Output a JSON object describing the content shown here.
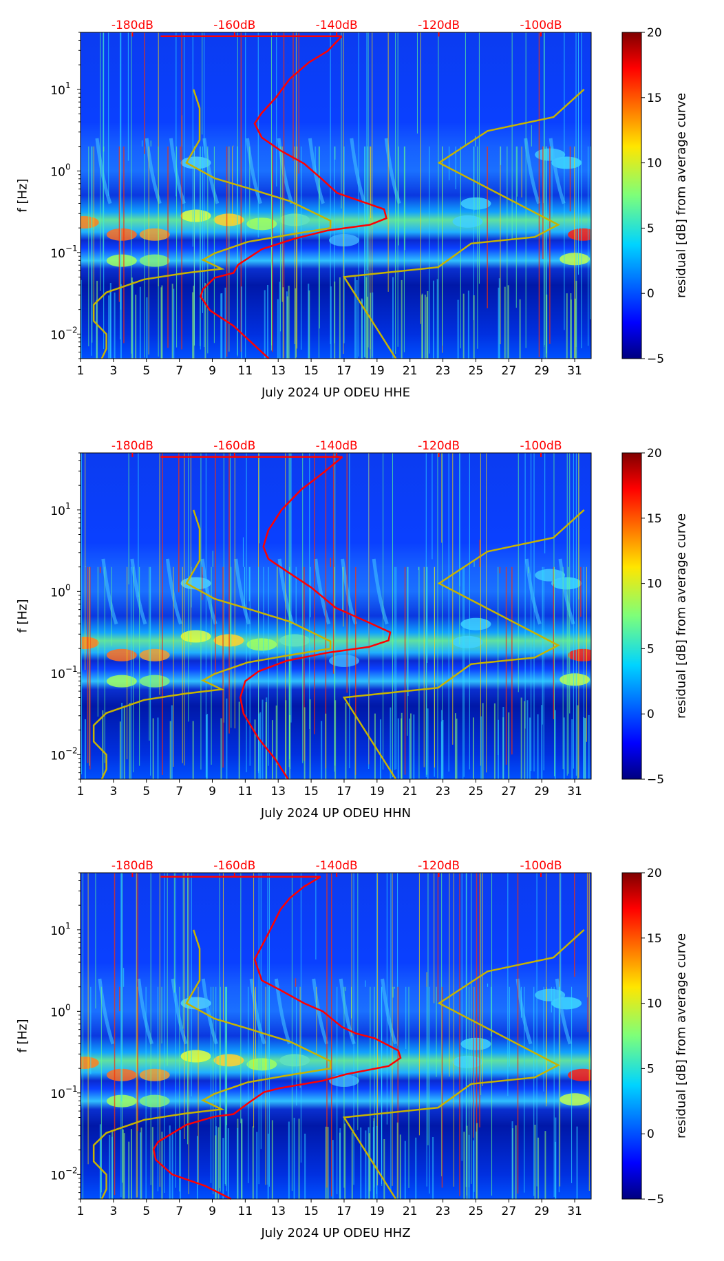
{
  "chart_data": [
    {
      "type": "heatmap",
      "title": "",
      "xlabel": "July 2024 UP ODEU  HHE",
      "ylabel": "f [Hz]",
      "x_ticks": [
        "1",
        "3",
        "5",
        "7",
        "9",
        "11",
        "13",
        "15",
        "17",
        "19",
        "21",
        "23",
        "25",
        "27",
        "29",
        "31"
      ],
      "xlim": [
        1,
        32
      ],
      "ylim": [
        0.005,
        50
      ],
      "y_scale": "log",
      "y_ticks": [
        {
          "exp": 1,
          "label": "10",
          "sup": "1"
        },
        {
          "exp": 0,
          "label": "10",
          "sup": "0"
        },
        {
          "exp": -1,
          "label": "10",
          "sup": "−1"
        },
        {
          "exp": -2,
          "label": "10",
          "sup": "−2"
        }
      ],
      "top_axis": {
        "labels": [
          "-180dB",
          "-160dB",
          "-140dB",
          "-120dB",
          "-100dB"
        ],
        "values_db": [
          -180,
          -160,
          -140,
          -120,
          -100
        ],
        "color": "#ff0000"
      },
      "colorbar": {
        "label": "residual [dB] from average curve",
        "range": [
          -5,
          20
        ],
        "ticks": [
          "20",
          "15",
          "10",
          "5",
          "0",
          "−5"
        ],
        "tick_values": [
          20,
          15,
          10,
          5,
          0,
          -5
        ],
        "colormap": "jet"
      },
      "point_format": [
        "day",
        "log10_f_Hz"
      ],
      "red_curve": {
        "color": "#ff0000",
        "points": [
          [
            16.86,
            1.65
          ],
          [
            16.0,
            1.47
          ],
          [
            14.86,
            1.33
          ],
          [
            13.71,
            1.13
          ],
          [
            12.86,
            0.9
          ],
          [
            12.0,
            0.71
          ],
          [
            11.57,
            0.58
          ],
          [
            12.0,
            0.41
          ],
          [
            13.14,
            0.25
          ],
          [
            14.57,
            0.09
          ],
          [
            15.71,
            -0.11
          ],
          [
            16.57,
            -0.27
          ],
          [
            18.29,
            -0.39
          ],
          [
            19.43,
            -0.47
          ],
          [
            19.57,
            -0.58
          ],
          [
            18.57,
            -0.66
          ],
          [
            16.0,
            -0.73
          ],
          [
            14.0,
            -0.83
          ],
          [
            12.0,
            -0.96
          ],
          [
            10.57,
            -1.15
          ],
          [
            10.29,
            -1.25
          ],
          [
            9.14,
            -1.31
          ],
          [
            8.43,
            -1.45
          ],
          [
            8.29,
            -1.54
          ],
          [
            8.86,
            -1.71
          ],
          [
            10.29,
            -1.9
          ],
          [
            12.43,
            -2.3
          ]
        ],
        "top_line_start_day": 5.86
      },
      "yellow_curves": [
        {
          "color": "#c8b400",
          "points": [
            [
              7.86,
              1.0
            ],
            [
              8.23,
              0.77
            ],
            [
              8.23,
              0.38
            ],
            [
              7.43,
              0.1
            ],
            [
              9.14,
              -0.09
            ],
            [
              11.14,
              -0.21
            ],
            [
              13.71,
              -0.37
            ],
            [
              16.17,
              -0.61
            ],
            [
              16.17,
              -0.7
            ],
            [
              13.71,
              -0.78
            ],
            [
              11.14,
              -0.87
            ],
            [
              9.14,
              -1.01
            ],
            [
              8.43,
              -1.09
            ],
            [
              9.57,
              -1.2
            ],
            [
              7.43,
              -1.25
            ],
            [
              4.86,
              -1.33
            ],
            [
              2.57,
              -1.49
            ],
            [
              1.8,
              -1.64
            ],
            [
              1.8,
              -1.84
            ],
            [
              2.57,
              -2.0
            ],
            [
              2.57,
              -2.18
            ],
            [
              2.29,
              -2.3
            ]
          ]
        },
        {
          "color": "#c8b400",
          "points": [
            [
              31.57,
              1.0
            ],
            [
              29.71,
              0.66
            ],
            [
              25.71,
              0.49
            ],
            [
              22.77,
              0.1
            ],
            [
              30.0,
              -0.66
            ],
            [
              28.57,
              -0.81
            ],
            [
              24.71,
              -0.89
            ],
            [
              22.71,
              -1.18
            ],
            [
              17.0,
              -1.3
            ],
            [
              20.14,
              -2.3
            ]
          ]
        }
      ]
    },
    {
      "type": "heatmap",
      "title": "",
      "xlabel": "July 2024 UP ODEU  HHN",
      "ylabel": "f [Hz]",
      "x_ticks": [
        "1",
        "3",
        "5",
        "7",
        "9",
        "11",
        "13",
        "15",
        "17",
        "19",
        "21",
        "23",
        "25",
        "27",
        "29",
        "31"
      ],
      "xlim": [
        1,
        32
      ],
      "ylim": [
        0.005,
        50
      ],
      "y_scale": "log",
      "y_ticks": [
        {
          "exp": 1,
          "label": "10",
          "sup": "1"
        },
        {
          "exp": 0,
          "label": "10",
          "sup": "0"
        },
        {
          "exp": -1,
          "label": "10",
          "sup": "−1"
        },
        {
          "exp": -2,
          "label": "10",
          "sup": "−2"
        }
      ],
      "top_axis": {
        "labels": [
          "-180dB",
          "-160dB",
          "-140dB",
          "-120dB",
          "-100dB"
        ],
        "values_db": [
          -180,
          -160,
          -140,
          -120,
          -100
        ],
        "color": "#ff0000"
      },
      "colorbar": {
        "label": "residual [dB] from average curve",
        "range": [
          -5,
          20
        ],
        "ticks": [
          "20",
          "15",
          "10",
          "5",
          "0",
          "−5"
        ],
        "tick_values": [
          20,
          15,
          10,
          5,
          0,
          -5
        ],
        "colormap": "jet"
      },
      "point_format": [
        "day",
        "log10_f_Hz"
      ],
      "red_curve": {
        "color": "#ff0000",
        "points": [
          [
            16.9,
            1.65
          ],
          [
            15.7,
            1.45
          ],
          [
            14.4,
            1.25
          ],
          [
            13.2,
            1.0
          ],
          [
            12.4,
            0.75
          ],
          [
            12.1,
            0.55
          ],
          [
            12.4,
            0.4
          ],
          [
            13.5,
            0.25
          ],
          [
            15.0,
            0.05
          ],
          [
            16.5,
            -0.2
          ],
          [
            18.5,
            -0.38
          ],
          [
            19.8,
            -0.5
          ],
          [
            19.7,
            -0.6
          ],
          [
            18.5,
            -0.68
          ],
          [
            16.0,
            -0.75
          ],
          [
            13.5,
            -0.85
          ],
          [
            11.8,
            -0.98
          ],
          [
            11.0,
            -1.1
          ],
          [
            10.7,
            -1.3
          ],
          [
            10.9,
            -1.5
          ],
          [
            11.8,
            -1.8
          ],
          [
            12.8,
            -2.05
          ],
          [
            13.6,
            -2.3
          ]
        ],
        "top_line_start_day": 5.86
      },
      "yellow_curves": [
        {
          "color": "#c8b400",
          "points": [
            [
              7.86,
              1.0
            ],
            [
              8.23,
              0.77
            ],
            [
              8.23,
              0.38
            ],
            [
              7.43,
              0.1
            ],
            [
              9.14,
              -0.09
            ],
            [
              11.14,
              -0.21
            ],
            [
              13.71,
              -0.37
            ],
            [
              16.17,
              -0.61
            ],
            [
              16.17,
              -0.7
            ],
            [
              13.71,
              -0.78
            ],
            [
              11.14,
              -0.87
            ],
            [
              9.14,
              -1.01
            ],
            [
              8.43,
              -1.09
            ],
            [
              9.57,
              -1.2
            ],
            [
              7.43,
              -1.25
            ],
            [
              4.86,
              -1.33
            ],
            [
              2.57,
              -1.49
            ],
            [
              1.8,
              -1.64
            ],
            [
              1.8,
              -1.84
            ],
            [
              2.57,
              -2.0
            ],
            [
              2.57,
              -2.18
            ],
            [
              2.29,
              -2.3
            ]
          ]
        },
        {
          "color": "#c8b400",
          "points": [
            [
              31.57,
              1.0
            ],
            [
              29.71,
              0.66
            ],
            [
              25.71,
              0.49
            ],
            [
              22.77,
              0.1
            ],
            [
              30.0,
              -0.66
            ],
            [
              28.57,
              -0.81
            ],
            [
              24.71,
              -0.89
            ],
            [
              22.71,
              -1.18
            ],
            [
              17.0,
              -1.3
            ],
            [
              20.14,
              -2.3
            ]
          ]
        }
      ]
    },
    {
      "type": "heatmap",
      "title": "",
      "xlabel": "July 2024 UP ODEU  HHZ",
      "ylabel": "f [Hz]",
      "x_ticks": [
        "1",
        "3",
        "5",
        "7",
        "9",
        "11",
        "13",
        "15",
        "17",
        "19",
        "21",
        "23",
        "25",
        "27",
        "29",
        "31"
      ],
      "xlim": [
        1,
        32
      ],
      "ylim": [
        0.005,
        50
      ],
      "y_scale": "log",
      "y_ticks": [
        {
          "exp": 1,
          "label": "10",
          "sup": "1"
        },
        {
          "exp": 0,
          "label": "10",
          "sup": "0"
        },
        {
          "exp": -1,
          "label": "10",
          "sup": "−1"
        },
        {
          "exp": -2,
          "label": "10",
          "sup": "−2"
        }
      ],
      "top_axis": {
        "labels": [
          "-180dB",
          "-160dB",
          "-140dB",
          "-120dB",
          "-100dB"
        ],
        "values_db": [
          -180,
          -160,
          -140,
          -120,
          -100
        ],
        "color": "#ff0000"
      },
      "colorbar": {
        "label": "residual [dB] from average curve",
        "range": [
          -5,
          20
        ],
        "ticks": [
          "20",
          "15",
          "10",
          "5",
          "0",
          "−5"
        ],
        "tick_values": [
          20,
          15,
          10,
          5,
          0,
          -5
        ],
        "colormap": "jet"
      },
      "point_format": [
        "day",
        "log10_f_Hz"
      ],
      "red_curve": {
        "color": "#ff0000",
        "points": [
          [
            15.57,
            1.65
          ],
          [
            14.57,
            1.53
          ],
          [
            13.71,
            1.39
          ],
          [
            13.14,
            1.25
          ],
          [
            12.57,
            1.02
          ],
          [
            12.0,
            0.8
          ],
          [
            11.57,
            0.64
          ],
          [
            12.0,
            0.38
          ],
          [
            13.14,
            0.26
          ],
          [
            14.57,
            0.1
          ],
          [
            15.71,
            0.0
          ],
          [
            16.86,
            -0.19
          ],
          [
            17.71,
            -0.27
          ],
          [
            18.86,
            -0.33
          ],
          [
            20.29,
            -0.48
          ],
          [
            20.43,
            -0.57
          ],
          [
            19.71,
            -0.67
          ],
          [
            17.14,
            -0.77
          ],
          [
            15.71,
            -0.85
          ],
          [
            13.14,
            -0.94
          ],
          [
            12.14,
            -0.99
          ],
          [
            11.14,
            -1.13
          ],
          [
            10.29,
            -1.26
          ],
          [
            9.14,
            -1.29
          ],
          [
            7.43,
            -1.39
          ],
          [
            5.71,
            -1.6
          ],
          [
            5.43,
            -1.69
          ],
          [
            5.57,
            -1.82
          ],
          [
            6.57,
            -2.0
          ],
          [
            8.57,
            -2.14
          ],
          [
            10.14,
            -2.3
          ]
        ],
        "top_line_start_day": 5.86
      },
      "yellow_curves": [
        {
          "color": "#c8b400",
          "points": [
            [
              7.86,
              1.0
            ],
            [
              8.23,
              0.77
            ],
            [
              8.23,
              0.38
            ],
            [
              7.43,
              0.1
            ],
            [
              9.14,
              -0.09
            ],
            [
              11.14,
              -0.21
            ],
            [
              13.71,
              -0.37
            ],
            [
              16.17,
              -0.61
            ],
            [
              16.17,
              -0.7
            ],
            [
              13.71,
              -0.78
            ],
            [
              11.14,
              -0.87
            ],
            [
              9.14,
              -1.01
            ],
            [
              8.43,
              -1.09
            ],
            [
              9.57,
              -1.2
            ],
            [
              7.43,
              -1.25
            ],
            [
              4.86,
              -1.33
            ],
            [
              2.57,
              -1.49
            ],
            [
              1.8,
              -1.64
            ],
            [
              1.8,
              -1.84
            ],
            [
              2.57,
              -2.0
            ],
            [
              2.57,
              -2.18
            ],
            [
              2.29,
              -2.3
            ]
          ]
        },
        {
          "color": "#c8b400",
          "points": [
            [
              31.57,
              1.0
            ],
            [
              29.71,
              0.66
            ],
            [
              25.71,
              0.49
            ],
            [
              22.77,
              0.1
            ],
            [
              30.0,
              -0.66
            ],
            [
              28.57,
              -0.81
            ],
            [
              24.71,
              -0.89
            ],
            [
              22.71,
              -1.18
            ],
            [
              17.0,
              -1.3
            ],
            [
              20.14,
              -2.3
            ]
          ]
        }
      ]
    }
  ]
}
